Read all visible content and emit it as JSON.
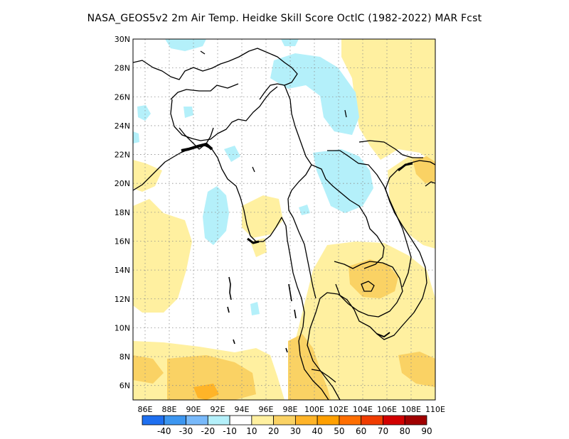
{
  "title": "NASA_GEOS5v2  2m Air Temp. Heidke Skill Score OctlC (1982-2022) MAR Fcst",
  "map": {
    "lat_labels": [
      "30N",
      "28N",
      "26N",
      "24N",
      "22N",
      "20N",
      "18N",
      "16N",
      "14N",
      "12N",
      "10N",
      "8N",
      "6N"
    ],
    "lon_labels": [
      "86E",
      "88E",
      "90E",
      "92E",
      "94E",
      "96E",
      "98E",
      "100E",
      "102E",
      "104E",
      "106E",
      "108E",
      "110E"
    ],
    "lat_range": [
      5,
      30
    ],
    "lon_range": [
      85,
      110
    ],
    "grid": true,
    "grid_style": "dotted"
  },
  "colorbar": {
    "labels": [
      "-40",
      "-30",
      "-20",
      "-10",
      "10",
      "20",
      "30",
      "40",
      "50",
      "60",
      "70",
      "80",
      "90"
    ],
    "colors": [
      "#1e6ff0",
      "#3c96f0",
      "#78b9fa",
      "#b4f0fa",
      "#ffffff",
      "#fff0a0",
      "#fad264",
      "#ffb428",
      "#ffa000",
      "#ff6e00",
      "#f03c00",
      "#d20000",
      "#a00000"
    ]
  },
  "fill_colors": {
    "light_blue": "#b4f0fa",
    "light_yellow": "#fff0a0",
    "yellow": "#fad264",
    "orange": "#ffb428"
  }
}
